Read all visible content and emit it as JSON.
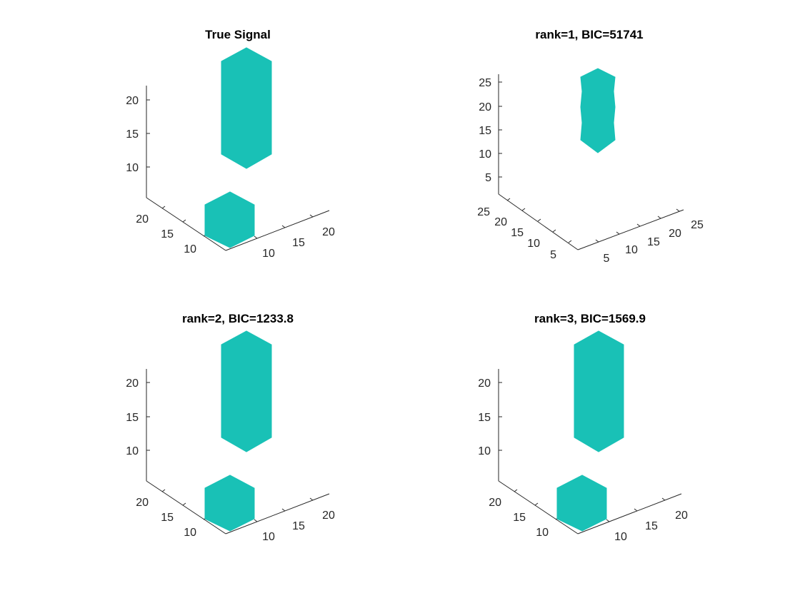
{
  "figure": {
    "background": "#ffffff",
    "shape_color": "#19c1b6"
  },
  "chart_data": [
    {
      "type": "isosurface-3d",
      "title": "True Signal",
      "ticks": {
        "x": [
          "10",
          "15",
          "20"
        ],
        "y": [
          "10",
          "15",
          "20"
        ],
        "z": [
          "10",
          "15",
          "20"
        ]
      },
      "shapes": [
        {
          "kind": "block",
          "x_range": [
            8,
            15
          ],
          "y_range": [
            8,
            15
          ],
          "z_range": [
            2,
            9
          ]
        },
        {
          "kind": "column",
          "x_range": [
            16,
            22
          ],
          "y_range": [
            16,
            22
          ],
          "z_range": [
            11,
            23
          ]
        }
      ]
    },
    {
      "type": "isosurface-3d",
      "title": "rank=1,  BIC=51741",
      "ticks": {
        "x": [
          "5",
          "10",
          "15",
          "20",
          "25"
        ],
        "y": [
          "5",
          "10",
          "15",
          "20",
          "25"
        ],
        "z": [
          "5",
          "10",
          "15",
          "20",
          "25"
        ]
      },
      "shapes": [
        {
          "kind": "column",
          "x_range": [
            16,
            22
          ],
          "y_range": [
            16,
            22
          ],
          "z_range": [
            11,
            26
          ]
        }
      ]
    },
    {
      "type": "isosurface-3d",
      "title": "rank=2,  BIC=1233.8",
      "ticks": {
        "x": [
          "10",
          "15",
          "20"
        ],
        "y": [
          "10",
          "15",
          "20"
        ],
        "z": [
          "10",
          "15",
          "20"
        ]
      },
      "shapes": [
        {
          "kind": "block",
          "x_range": [
            8,
            15
          ],
          "y_range": [
            8,
            15
          ],
          "z_range": [
            2,
            9
          ]
        },
        {
          "kind": "column",
          "x_range": [
            16,
            22
          ],
          "y_range": [
            16,
            22
          ],
          "z_range": [
            11,
            23
          ]
        }
      ]
    },
    {
      "type": "isosurface-3d",
      "title": "rank=3,  BIC=1569.9",
      "ticks": {
        "x": [
          "10",
          "15",
          "20"
        ],
        "y": [
          "10",
          "15",
          "20"
        ],
        "z": [
          "10",
          "15",
          "20"
        ]
      },
      "shapes": [
        {
          "kind": "block",
          "x_range": [
            8,
            15
          ],
          "y_range": [
            8,
            15
          ],
          "z_range": [
            2,
            9
          ]
        },
        {
          "kind": "column",
          "x_range": [
            16,
            22
          ],
          "y_range": [
            16,
            22
          ],
          "z_range": [
            11,
            23
          ]
        }
      ]
    }
  ]
}
